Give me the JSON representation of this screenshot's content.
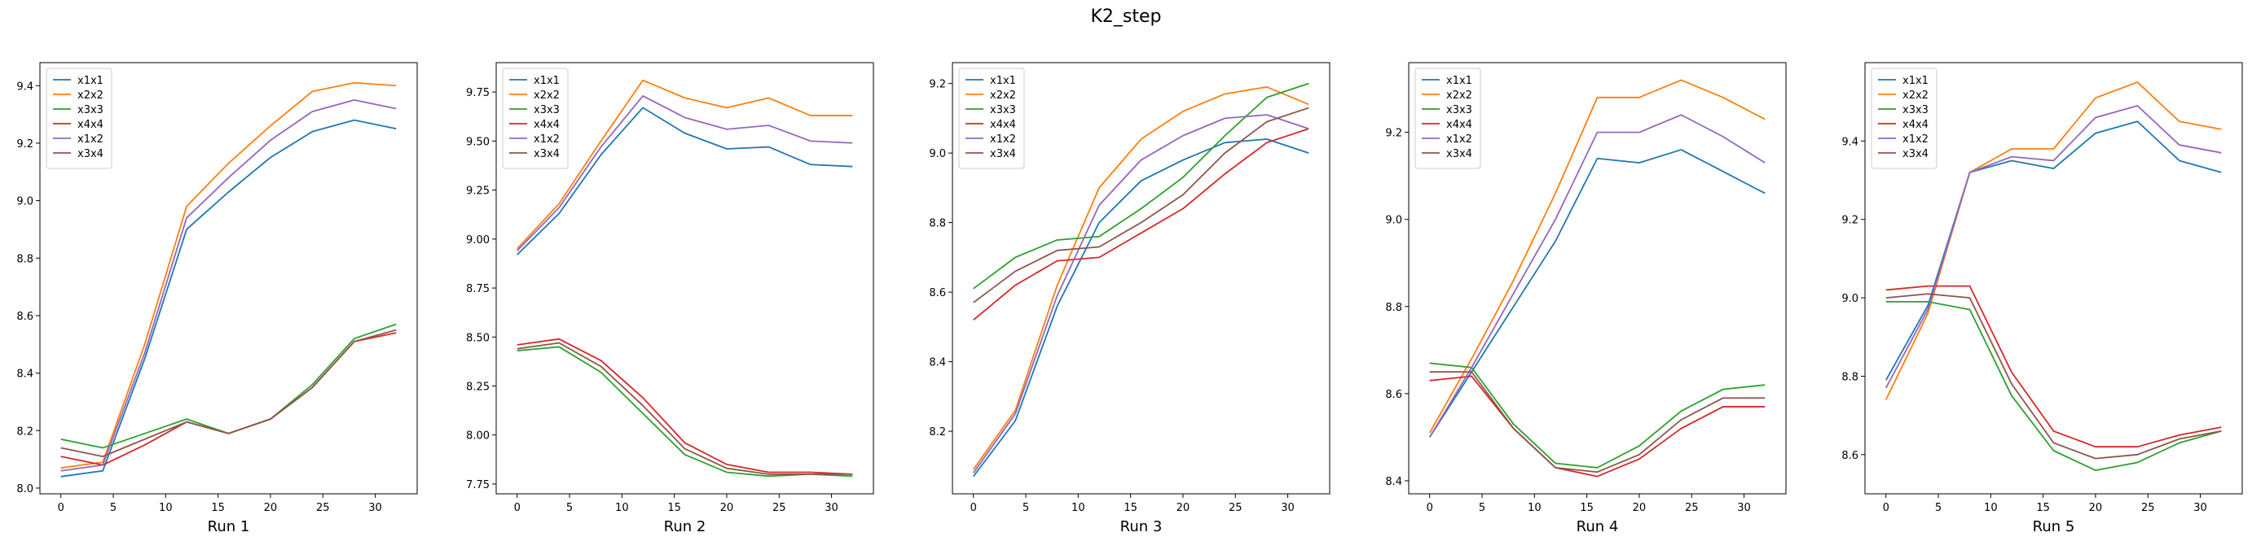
{
  "figure": {
    "title": "K2_step",
    "colors": {
      "x1x1": "#1f77b4",
      "x2x2": "#ff7f0e",
      "x3x3": "#2ca02c",
      "x4x4": "#d62728",
      "x1x2": "#9467bd",
      "x3x4": "#8c564b"
    }
  },
  "chart_data": [
    {
      "type": "line",
      "xlabel": "Run 1",
      "x": [
        0,
        4,
        8,
        12,
        16,
        20,
        24,
        28,
        32
      ],
      "xlim": [
        -2,
        34
      ],
      "ylim": [
        7.98,
        9.48
      ],
      "xticks": [
        0,
        5,
        10,
        15,
        20,
        25,
        30
      ],
      "yticks": [
        8.0,
        8.2,
        8.4,
        8.6,
        8.8,
        9.0,
        9.2,
        9.4
      ],
      "ytick_labels": [
        "8.0",
        "8.2",
        "8.4",
        "8.6",
        "8.8",
        "9.0",
        "9.2",
        "9.4"
      ],
      "legend": "upper-left",
      "series": [
        {
          "name": "x1x1",
          "values": [
            8.04,
            8.06,
            8.45,
            8.9,
            9.03,
            9.15,
            9.24,
            9.28,
            9.25
          ]
        },
        {
          "name": "x2x2",
          "values": [
            8.07,
            8.09,
            8.5,
            8.98,
            9.13,
            9.26,
            9.38,
            9.41,
            9.4
          ]
        },
        {
          "name": "x3x3",
          "values": [
            8.17,
            8.14,
            8.19,
            8.24,
            8.19,
            8.24,
            8.36,
            8.52,
            8.57
          ]
        },
        {
          "name": "x4x4",
          "values": [
            8.11,
            8.08,
            8.15,
            8.23,
            8.19,
            8.24,
            8.35,
            8.51,
            8.54
          ]
        },
        {
          "name": "x1x2",
          "values": [
            8.06,
            8.08,
            8.47,
            8.94,
            9.08,
            9.21,
            9.31,
            9.35,
            9.32
          ]
        },
        {
          "name": "x3x4",
          "values": [
            8.14,
            8.11,
            8.17,
            8.23,
            8.19,
            8.24,
            8.35,
            8.51,
            8.55
          ]
        }
      ]
    },
    {
      "type": "line",
      "xlabel": "Run 2",
      "x": [
        0,
        4,
        8,
        12,
        16,
        20,
        24,
        28,
        32
      ],
      "xlim": [
        -2,
        34
      ],
      "ylim": [
        7.7,
        9.9
      ],
      "xticks": [
        0,
        5,
        10,
        15,
        20,
        25,
        30
      ],
      "yticks": [
        7.75,
        8.0,
        8.25,
        8.5,
        8.75,
        9.0,
        9.25,
        9.5,
        9.75
      ],
      "ytick_labels": [
        "7.75",
        "8.00",
        "8.25",
        "8.50",
        "8.75",
        "9.00",
        "9.25",
        "9.50",
        "9.75"
      ],
      "legend": "upper-left",
      "series": [
        {
          "name": "x1x1",
          "values": [
            8.92,
            9.13,
            9.43,
            9.67,
            9.54,
            9.46,
            9.47,
            9.38,
            9.37
          ]
        },
        {
          "name": "x2x2",
          "values": [
            8.95,
            9.18,
            9.5,
            9.81,
            9.72,
            9.67,
            9.72,
            9.63,
            9.63
          ]
        },
        {
          "name": "x3x3",
          "values": [
            8.43,
            8.45,
            8.32,
            8.11,
            7.9,
            7.81,
            7.79,
            7.8,
            7.79
          ]
        },
        {
          "name": "x4x4",
          "values": [
            8.46,
            8.49,
            8.38,
            8.19,
            7.96,
            7.85,
            7.81,
            7.81,
            7.8
          ]
        },
        {
          "name": "x1x2",
          "values": [
            8.94,
            9.16,
            9.47,
            9.73,
            9.62,
            9.56,
            9.58,
            9.5,
            9.49
          ]
        },
        {
          "name": "x3x4",
          "values": [
            8.44,
            8.47,
            8.35,
            8.15,
            7.93,
            7.83,
            7.8,
            7.8,
            7.8
          ]
        }
      ]
    },
    {
      "type": "line",
      "xlabel": "Run 3",
      "x": [
        0,
        4,
        8,
        12,
        16,
        20,
        24,
        28,
        32
      ],
      "xlim": [
        -2,
        34
      ],
      "ylim": [
        8.02,
        9.26
      ],
      "xticks": [
        0,
        5,
        10,
        15,
        20,
        25,
        30
      ],
      "yticks": [
        8.2,
        8.4,
        8.6,
        8.8,
        9.0,
        9.2
      ],
      "ytick_labels": [
        "8.2",
        "8.4",
        "8.6",
        "8.8",
        "9.0",
        "9.2"
      ],
      "legend": "upper-left",
      "series": [
        {
          "name": "x1x1",
          "values": [
            8.07,
            8.23,
            8.56,
            8.8,
            8.92,
            8.98,
            9.03,
            9.04,
            9.0
          ]
        },
        {
          "name": "x2x2",
          "values": [
            8.09,
            8.26,
            8.62,
            8.9,
            9.04,
            9.12,
            9.17,
            9.19,
            9.14
          ]
        },
        {
          "name": "x3x3",
          "values": [
            8.61,
            8.7,
            8.75,
            8.76,
            8.84,
            8.93,
            9.05,
            9.16,
            9.2
          ]
        },
        {
          "name": "x4x4",
          "values": [
            8.52,
            8.62,
            8.69,
            8.7,
            8.77,
            8.84,
            8.94,
            9.03,
            9.07
          ]
        },
        {
          "name": "x1x2",
          "values": [
            8.08,
            8.25,
            8.59,
            8.85,
            8.98,
            9.05,
            9.1,
            9.11,
            9.07
          ]
        },
        {
          "name": "x3x4",
          "values": [
            8.57,
            8.66,
            8.72,
            8.73,
            8.8,
            8.88,
            9.0,
            9.09,
            9.13
          ]
        }
      ]
    },
    {
      "type": "line",
      "xlabel": "Run 4",
      "x": [
        0,
        4,
        8,
        12,
        16,
        20,
        24,
        28,
        32
      ],
      "xlim": [
        -2,
        34
      ],
      "ylim": [
        8.37,
        9.36
      ],
      "xticks": [
        0,
        5,
        10,
        15,
        20,
        25,
        30
      ],
      "yticks": [
        8.4,
        8.6,
        8.8,
        9.0,
        9.2
      ],
      "ytick_labels": [
        "8.4",
        "8.6",
        "8.8",
        "9.0",
        "9.2"
      ],
      "legend": "upper-left",
      "series": [
        {
          "name": "x1x1",
          "values": [
            8.5,
            8.65,
            8.8,
            8.95,
            9.14,
            9.13,
            9.16,
            9.11,
            9.06
          ]
        },
        {
          "name": "x2x2",
          "values": [
            8.51,
            8.68,
            8.86,
            9.06,
            9.28,
            9.28,
            9.32,
            9.28,
            9.23
          ]
        },
        {
          "name": "x3x3",
          "values": [
            8.67,
            8.66,
            8.53,
            8.44,
            8.43,
            8.48,
            8.56,
            8.61,
            8.62
          ]
        },
        {
          "name": "x4x4",
          "values": [
            8.63,
            8.64,
            8.52,
            8.43,
            8.41,
            8.45,
            8.52,
            8.57,
            8.57
          ]
        },
        {
          "name": "x1x2",
          "values": [
            8.5,
            8.66,
            8.83,
            9.0,
            9.2,
            9.2,
            9.24,
            9.19,
            9.13
          ]
        },
        {
          "name": "x3x4",
          "values": [
            8.65,
            8.65,
            8.52,
            8.43,
            8.42,
            8.46,
            8.54,
            8.59,
            8.59
          ]
        }
      ]
    },
    {
      "type": "line",
      "xlabel": "Run 5",
      "x": [
        0,
        4,
        8,
        12,
        16,
        20,
        24,
        28,
        32
      ],
      "xlim": [
        -2,
        34
      ],
      "ylim": [
        8.5,
        9.6
      ],
      "xticks": [
        0,
        5,
        10,
        15,
        20,
        25,
        30
      ],
      "yticks": [
        8.6,
        8.8,
        9.0,
        9.2,
        9.4
      ],
      "ytick_labels": [
        "8.6",
        "8.8",
        "9.0",
        "9.2",
        "9.4"
      ],
      "legend": "upper-left",
      "series": [
        {
          "name": "x1x1",
          "values": [
            8.79,
            8.98,
            9.32,
            9.35,
            9.33,
            9.42,
            9.45,
            9.35,
            9.32
          ]
        },
        {
          "name": "x2x2",
          "values": [
            8.74,
            8.96,
            9.32,
            9.38,
            9.38,
            9.51,
            9.55,
            9.45,
            9.43
          ]
        },
        {
          "name": "x3x3",
          "values": [
            8.99,
            8.99,
            8.97,
            8.75,
            8.61,
            8.56,
            8.58,
            8.63,
            8.66
          ]
        },
        {
          "name": "x4x4",
          "values": [
            9.02,
            9.03,
            9.03,
            8.81,
            8.66,
            8.62,
            8.62,
            8.65,
            8.67
          ]
        },
        {
          "name": "x1x2",
          "values": [
            8.77,
            8.97,
            9.32,
            9.36,
            9.35,
            9.46,
            9.49,
            9.39,
            9.37
          ]
        },
        {
          "name": "x3x4",
          "values": [
            9.0,
            9.01,
            9.0,
            8.78,
            8.63,
            8.59,
            8.6,
            8.64,
            8.66
          ]
        }
      ]
    }
  ]
}
